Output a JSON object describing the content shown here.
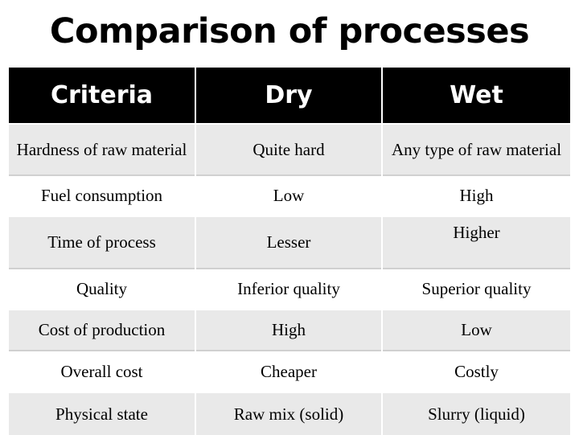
{
  "title": "Comparison of processes",
  "table": {
    "headers": [
      "Criteria",
      "Dry",
      "Wet"
    ],
    "rows": [
      [
        "Hardness of raw material",
        "Quite hard",
        "Any type of raw material"
      ],
      [
        "Fuel consumption",
        "Low",
        "High"
      ],
      [
        "Time of process",
        "Lesser",
        "Higher"
      ],
      [
        "Quality",
        "Inferior quality",
        "Superior quality"
      ],
      [
        "Cost of production",
        "High",
        "Low"
      ],
      [
        "Overall cost",
        "Cheaper",
        "Costly"
      ],
      [
        "Physical state",
        "Raw mix (solid)",
        "Slurry (liquid)"
      ]
    ]
  }
}
